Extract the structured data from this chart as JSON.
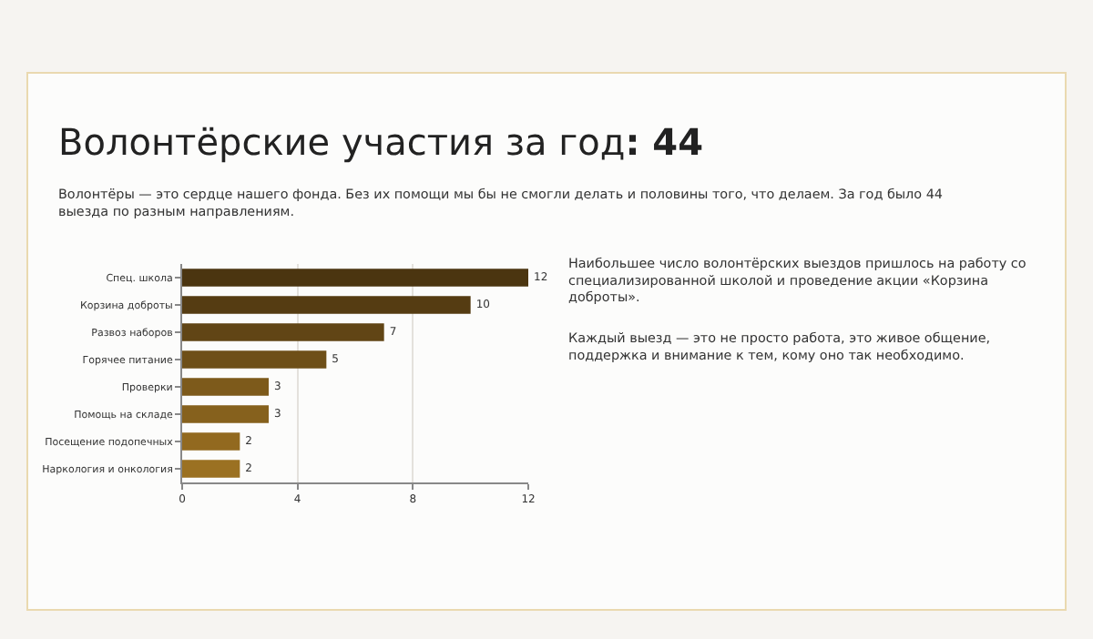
{
  "chart_data": {
    "type": "bar",
    "orientation": "horizontal",
    "title": "Волонтёрские участия за год: 44",
    "subtitle": "Волонтёры — это сердце нашего фонда. Без их помощи мы бы не смогли делать и половины того, что делаем. За год было 44 выезда по разным направлениям.",
    "categories": [
      "Спец. школа",
      "Корзина доброты",
      "Развоз наборов",
      "Горячее питание",
      "Проверки",
      "Помощь на складе",
      "Посещение подопечных",
      "Наркология и онкология"
    ],
    "values": [
      12,
      10,
      7,
      5,
      3,
      3,
      2,
      2
    ],
    "colors": [
      "#4b3510",
      "#553c12",
      "#614515",
      "#6e4f18",
      "#7d5a1b",
      "#86611d",
      "#92691f",
      "#9b7122"
    ],
    "xlim": [
      0,
      12
    ],
    "xticks": [
      0,
      4,
      8,
      12
    ],
    "grid": "x",
    "data_labels": true,
    "annotations": [
      "Наибольшее число волонтёрских выездов пришлось на работу со специализированной школой и проведение акции «Корзина доброты».",
      "Каждый выезд — это не просто работа, это живое общение, поддержка и внимание к тем, кому оно так необходимо."
    ]
  }
}
